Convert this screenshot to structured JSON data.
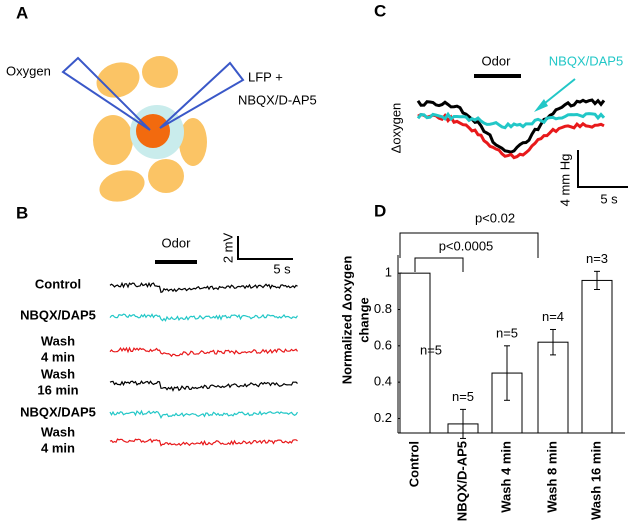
{
  "panels": {
    "a": {
      "label": "A",
      "oxygen": "Oxygen",
      "lfp": [
        "LFP +",
        "NBQX/D-AP5"
      ]
    },
    "b": {
      "label": "B",
      "odor": "Odor",
      "scale_v": "2 mV",
      "scale_t": "5 s",
      "rows": [
        [
          "Control"
        ],
        [
          "NBQX/DAP5"
        ],
        [
          "Wash",
          "4 min"
        ],
        [
          "Wash",
          "16 min"
        ],
        [
          "NBQX/DAP5"
        ],
        [
          "Wash",
          "4 min"
        ]
      ]
    },
    "c": {
      "label": "C",
      "odor": "Odor",
      "drug": "NBQX/DAP5",
      "y_label": "Δoxygen",
      "scale_v": "4 mm Hg",
      "scale_t": "5 s"
    }
  },
  "chart_data": {
    "type": "bar",
    "label": "D",
    "y_label": [
      "Normalized Δoxygen",
      "change"
    ],
    "categories": [
      "Control",
      "NBQX/D-AP5",
      "Wash 4 min",
      "Wash 8 min",
      "Wash 16 min"
    ],
    "values": [
      1,
      0.17,
      0.45,
      0.62,
      0.96
    ],
    "errors": [
      null,
      0.08,
      0.15,
      0.07,
      0.05
    ],
    "counts": [
      "n=5",
      "n=5",
      "n=5",
      "n=4",
      "n=3"
    ],
    "significance": [
      "p<0.0005",
      "p<0.02"
    ],
    "color": "#ffffff",
    "ylim": [
      0.12,
      1.1
    ],
    "yticks": [
      0.2,
      0.4,
      0.6,
      0.8,
      1
    ]
  }
}
